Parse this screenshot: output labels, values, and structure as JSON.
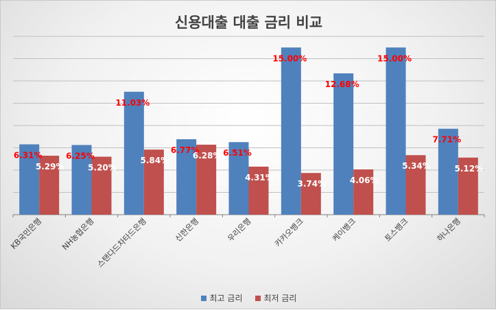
{
  "chart_data": {
    "type": "bar",
    "title": "신용대출 대출 금리 비교",
    "xlabel": "",
    "ylabel": "",
    "ylim": [
      0,
      16
    ],
    "grid": true,
    "legend": "bottom",
    "categories": [
      "KB국민은행",
      "NH농협은행",
      "스탠다드차타드은행",
      "신한은행",
      "우리은행",
      "카카오뱅크",
      "케이뱅크",
      "토스뱅크",
      "하나은행"
    ],
    "series": [
      {
        "name": "최고 금리",
        "color": "#4f81bd",
        "values": [
          6.31,
          6.25,
          11.03,
          6.77,
          6.51,
          15.0,
          12.68,
          15.0,
          7.71
        ],
        "labels": [
          "6.31%",
          "6.25%",
          "11.03%",
          "6.77%",
          "6.51%",
          "15.00%",
          "12.68%",
          "15.00%",
          "7.71%"
        ]
      },
      {
        "name": "최저 금리",
        "color": "#c0504d",
        "values": [
          5.29,
          5.2,
          5.84,
          6.28,
          4.31,
          3.74,
          4.06,
          5.34,
          5.12
        ],
        "labels": [
          "5.29%",
          "5.20%",
          "5.84%",
          "6.28%",
          "4.31%",
          "3.74%",
          "4.06%",
          "5.34%",
          "5.12%"
        ]
      }
    ]
  }
}
